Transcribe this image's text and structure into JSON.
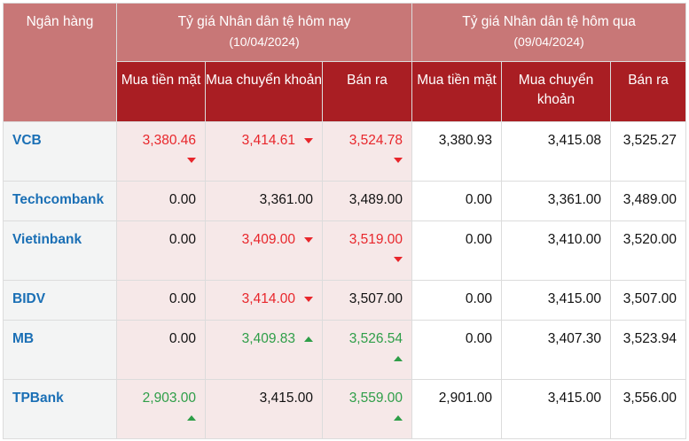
{
  "header": {
    "bank": "Ngân hàng",
    "today": "Tỷ giá Nhân dân tệ hôm nay",
    "today_date": "(10/04/2024)",
    "yesterday": "Tỷ giá Nhân dân tệ hôm qua",
    "yesterday_date": "(09/04/2024)",
    "cols": [
      "Mua tiền mặt",
      "Mua chuyển khoản",
      "Bán ra",
      "Mua tiền mặt",
      "Mua chuyển khoản",
      "Bán ra"
    ]
  },
  "colors": {
    "header_light": "#c87777",
    "header_dark": "#a91e23",
    "down": "#e8262b",
    "up": "#2e9e48",
    "bank": "#1a6fb5"
  },
  "rows": [
    {
      "bank": "VCB",
      "today": [
        {
          "v": "3,380.46",
          "t": "down"
        },
        {
          "v": "3,414.61",
          "t": "down"
        },
        {
          "v": "3,524.78",
          "t": "down"
        }
      ],
      "yesterday": [
        "3,380.93",
        "3,415.08",
        "3,525.27"
      ]
    },
    {
      "bank": "Techcombank",
      "today": [
        {
          "v": "0.00",
          "t": null
        },
        {
          "v": "3,361.00",
          "t": null
        },
        {
          "v": "3,489.00",
          "t": null
        }
      ],
      "yesterday": [
        "0.00",
        "3,361.00",
        "3,489.00"
      ]
    },
    {
      "bank": "Vietinbank",
      "today": [
        {
          "v": "0.00",
          "t": null
        },
        {
          "v": "3,409.00",
          "t": "down"
        },
        {
          "v": "3,519.00",
          "t": "down"
        }
      ],
      "yesterday": [
        "0.00",
        "3,410.00",
        "3,520.00"
      ]
    },
    {
      "bank": "BIDV",
      "today": [
        {
          "v": "0.00",
          "t": null
        },
        {
          "v": "3,414.00",
          "t": "down"
        },
        {
          "v": "3,507.00",
          "t": null
        }
      ],
      "yesterday": [
        "0.00",
        "3,415.00",
        "3,507.00"
      ]
    },
    {
      "bank": "MB",
      "today": [
        {
          "v": "0.00",
          "t": null
        },
        {
          "v": "3,409.83",
          "t": "up"
        },
        {
          "v": "3,526.54",
          "t": "up"
        }
      ],
      "yesterday": [
        "0.00",
        "3,407.30",
        "3,523.94"
      ]
    },
    {
      "bank": "TPBank",
      "today": [
        {
          "v": "2,903.00",
          "t": "up"
        },
        {
          "v": "3,415.00",
          "t": null
        },
        {
          "v": "3,559.00",
          "t": "up"
        }
      ],
      "yesterday": [
        "2,901.00",
        "3,415.00",
        "3,556.00"
      ]
    }
  ]
}
